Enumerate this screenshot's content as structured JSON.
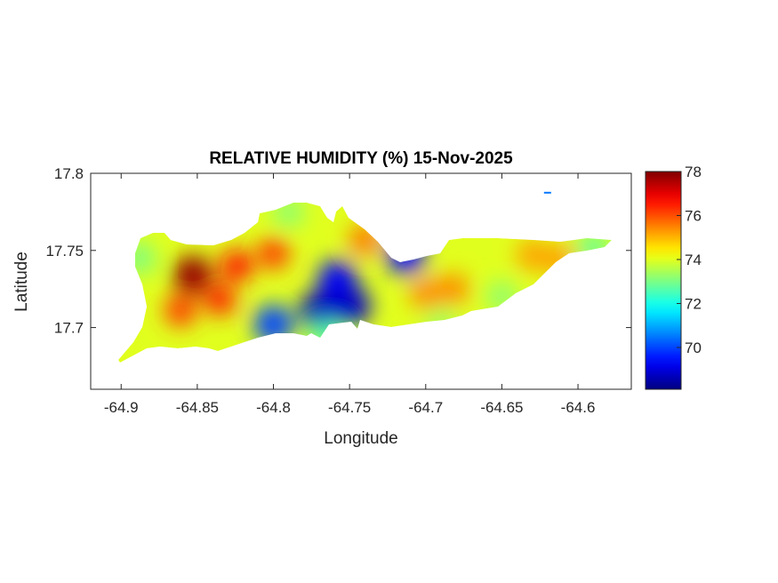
{
  "chart_data": {
    "type": "heatmap",
    "title": "RELATIVE HUMIDITY (%) 15-Nov-2025",
    "xlabel": "Longitude",
    "ylabel": "Latitude",
    "xlim": [
      -64.92,
      -64.565
    ],
    "ylim": [
      17.66,
      17.8
    ],
    "xticks": [
      -64.9,
      -64.85,
      -64.8,
      -64.75,
      -64.7,
      -64.65,
      -64.6
    ],
    "xtick_labels": [
      "-64.9",
      "-64.85",
      "-64.8",
      "-64.75",
      "-64.7",
      "-64.65",
      "-64.6"
    ],
    "yticks": [
      17.7,
      17.75,
      17.8
    ],
    "ytick_labels": [
      "17.7",
      "17.75",
      "17.8"
    ],
    "colormap": "jet",
    "colorbar": {
      "clim": [
        68.1,
        78
      ],
      "ticks": [
        70,
        72,
        74,
        76,
        78
      ],
      "tick_labels": [
        "70",
        "72",
        "74",
        "76",
        "78"
      ]
    },
    "background_value": 74,
    "field_points": [
      {
        "lon": -64.853,
        "lat": 17.734,
        "value": 77.8
      },
      {
        "lon": -64.824,
        "lat": 17.74,
        "value": 76.6
      },
      {
        "lon": -64.8,
        "lat": 17.748,
        "value": 76.2
      },
      {
        "lon": -64.861,
        "lat": 17.711,
        "value": 76.2
      },
      {
        "lon": -64.835,
        "lat": 17.718,
        "value": 76.4
      },
      {
        "lon": -64.758,
        "lat": 17.731,
        "value": 69.3
      },
      {
        "lon": -64.749,
        "lat": 17.714,
        "value": 68.8
      },
      {
        "lon": -64.77,
        "lat": 17.711,
        "value": 68.7
      },
      {
        "lon": -64.8,
        "lat": 17.702,
        "value": 70.0
      },
      {
        "lon": -64.713,
        "lat": 17.747,
        "value": 69.5
      },
      {
        "lon": -64.74,
        "lat": 17.757,
        "value": 75.6
      },
      {
        "lon": -64.7,
        "lat": 17.722,
        "value": 75.4
      },
      {
        "lon": -64.682,
        "lat": 17.725,
        "value": 75.4
      },
      {
        "lon": -64.63,
        "lat": 17.747,
        "value": 75.2
      },
      {
        "lon": -64.612,
        "lat": 17.744,
        "value": 75.2
      },
      {
        "lon": -64.888,
        "lat": 17.745,
        "value": 73.0
      },
      {
        "lon": -64.79,
        "lat": 17.775,
        "value": 73.2
      },
      {
        "lon": -64.59,
        "lat": 17.752,
        "value": 72.8
      },
      {
        "lon": -64.65,
        "lat": 17.72,
        "value": 73.2
      },
      {
        "lon": -64.69,
        "lat": 17.703,
        "value": 73.4
      },
      {
        "lon": -64.765,
        "lat": 17.694,
        "value": 72.6
      },
      {
        "lon": -64.62,
        "lat": 17.788,
        "value": 70.5
      }
    ]
  }
}
